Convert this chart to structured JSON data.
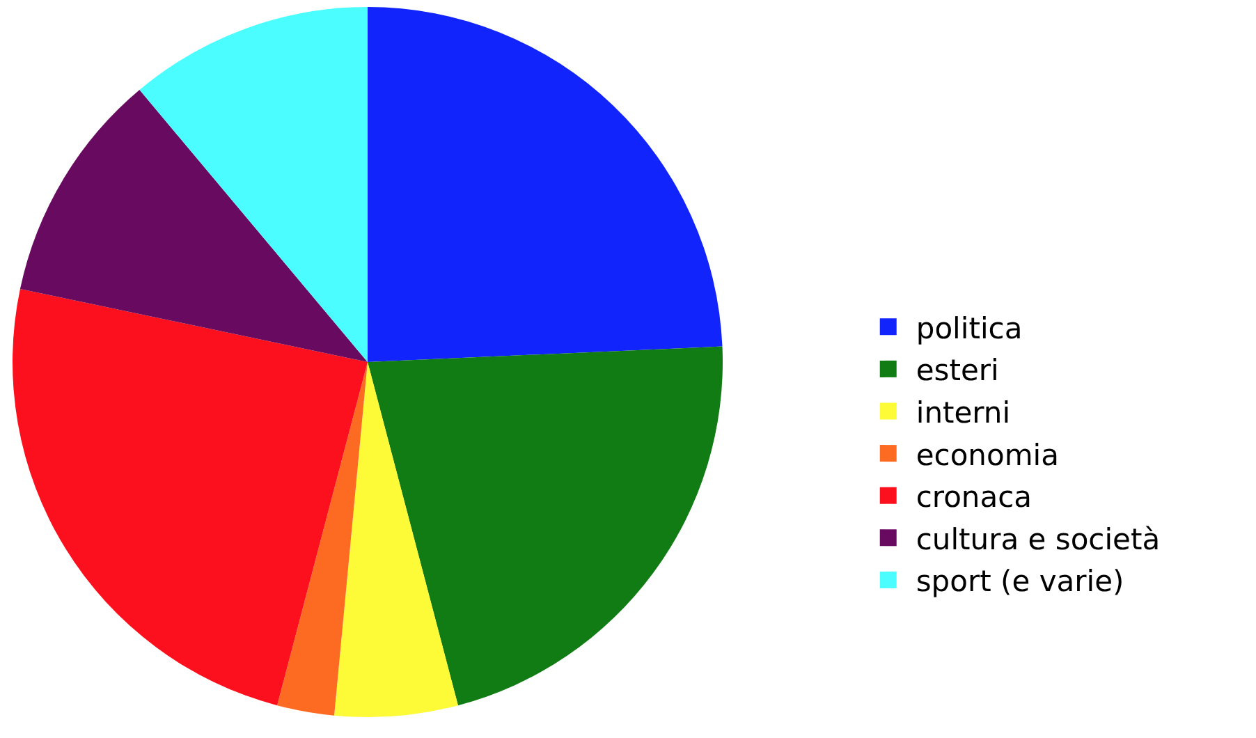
{
  "chart_data": {
    "type": "pie",
    "categories": [
      "politica",
      "esteri",
      "interni",
      "economia",
      "cronaca",
      "cultura e società",
      "sport (e varie)"
    ],
    "values": [
      24.3,
      21.6,
      5.6,
      2.6,
      24.2,
      10.6,
      11.1
    ],
    "colors": [
      "#1024fb",
      "#117c13",
      "#fdfa38",
      "#fd6a21",
      "#fc101d",
      "#670a60",
      "#4bfdfe"
    ],
    "legend": "right"
  }
}
